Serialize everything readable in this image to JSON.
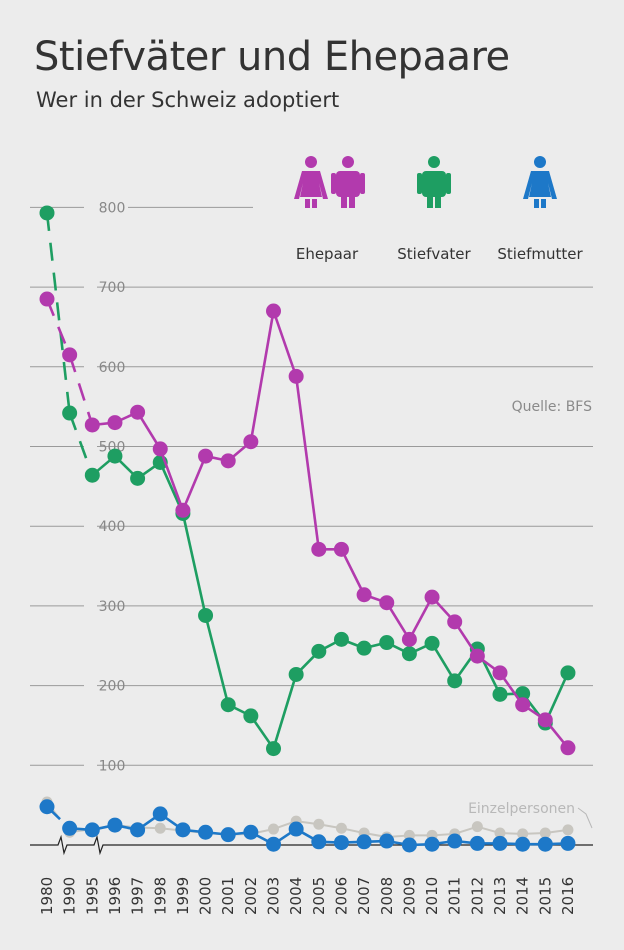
{
  "header": {
    "title": "Stiefväter und Ehepaare",
    "subtitle": "Wer in der Schweiz adoptiert"
  },
  "source": "Quelle: BFS",
  "legend": [
    {
      "key": "ehepaar",
      "label": "Ehepaar",
      "icon": "couple-icon",
      "color": "#b23aad"
    },
    {
      "key": "stiefvater",
      "label": "Stiefvater",
      "icon": "man-icon",
      "color": "#1e9e62"
    },
    {
      "key": "stiefmutter",
      "label": "Stiefmutter",
      "icon": "woman-icon",
      "color": "#1d78c8"
    }
  ],
  "chart_data": {
    "type": "line",
    "title": "Stiefväter und Ehepaare",
    "subtitle": "Wer in der Schweiz adoptiert",
    "x": [
      "1980",
      "1990",
      "1995",
      "1996",
      "1997",
      "1998",
      "1999",
      "2000",
      "2001",
      "2002",
      "2003",
      "2004",
      "2005",
      "2006",
      "2007",
      "2008",
      "2009",
      "2010",
      "2011",
      "2012",
      "2013",
      "2014",
      "2015",
      "2016"
    ],
    "y_ticks": [
      100,
      200,
      300,
      400,
      500,
      600,
      700,
      800
    ],
    "ylim": [
      0,
      800
    ],
    "x_breaks": [
      "1980-1990",
      "1990-1995"
    ],
    "grid": true,
    "legend_position": "top-right",
    "series": [
      {
        "name": "Ehepaar",
        "color": "#b23aad",
        "values": [
          685,
          615,
          527,
          530,
          543,
          497,
          420,
          488,
          482,
          506,
          670,
          588,
          371,
          371,
          314,
          304,
          258,
          311,
          280,
          237,
          216,
          176,
          157,
          122
        ]
      },
      {
        "name": "Stiefvater",
        "color": "#1e9e62",
        "values": [
          793,
          542,
          464,
          488,
          460,
          480,
          416,
          288,
          176,
          162,
          121,
          214,
          243,
          258,
          247,
          254,
          240,
          253,
          206,
          246,
          189,
          190,
          153,
          216
        ]
      },
      {
        "name": "Stiefmutter",
        "color": "#1d78c8",
        "values": [
          48,
          21,
          19,
          25,
          19,
          39,
          19,
          16,
          13,
          16,
          1,
          20,
          4,
          3,
          4,
          5,
          0,
          1,
          5,
          2,
          2,
          1,
          1,
          2
        ]
      },
      {
        "name": "Einzelpersonen",
        "color": "#c8c6c0",
        "values": [
          54,
          16,
          20,
          25,
          22,
          21,
          18,
          15,
          13,
          14,
          20,
          30,
          26,
          21,
          15,
          10,
          12,
          12,
          14,
          23,
          15,
          14,
          15,
          19
        ]
      }
    ],
    "annotations": [
      {
        "series": "Einzelpersonen",
        "text": "Einzelpersonen"
      }
    ]
  }
}
